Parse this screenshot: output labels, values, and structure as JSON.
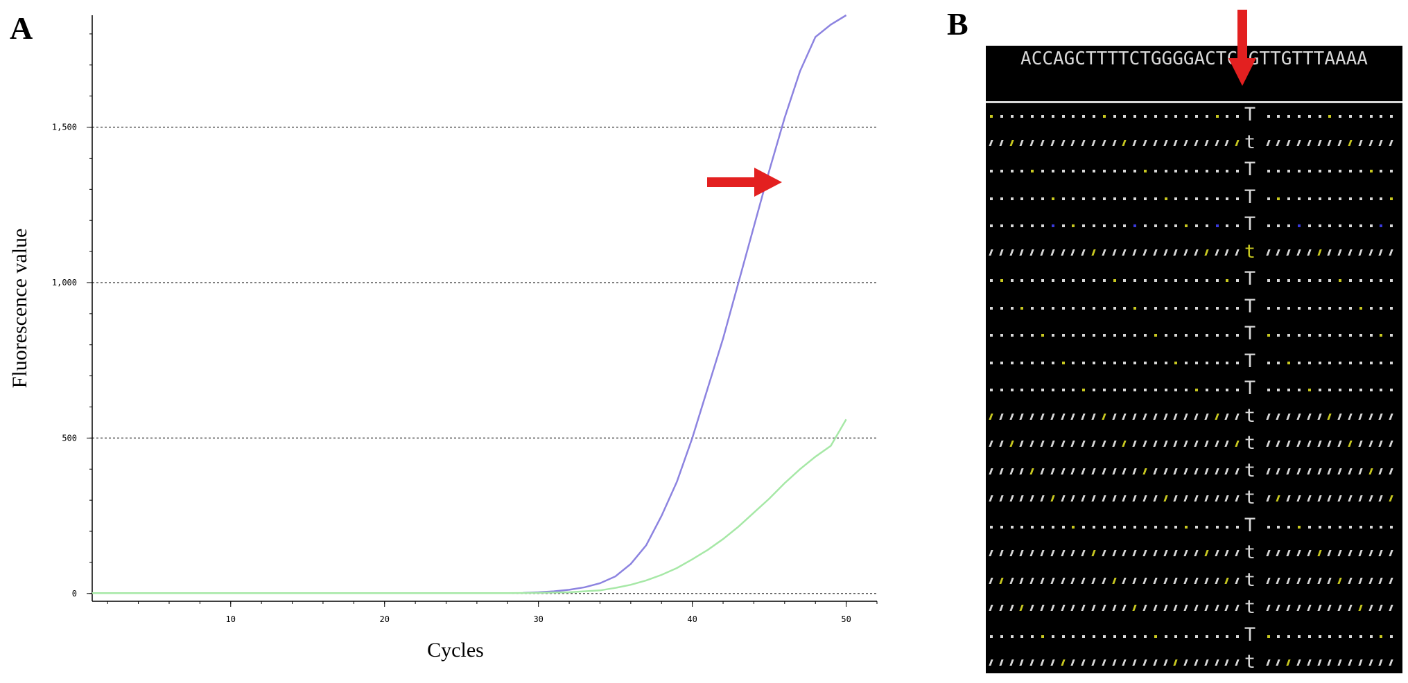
{
  "panel_a": {
    "letter": "A"
  },
  "panel_b": {
    "letter": "B"
  },
  "chart_data": {
    "type": "line",
    "title": "",
    "xlabel": "Cycles",
    "ylabel": "Fluorescence value",
    "xlim": [
      1,
      52
    ],
    "ylim": [
      -25,
      1860
    ],
    "x_ticks": [
      10,
      20,
      30,
      40,
      50
    ],
    "x_tick_labels": [
      "10",
      "20",
      "30",
      "40",
      "50"
    ],
    "y_ticks": [
      0,
      500,
      1000,
      1500
    ],
    "y_tick_labels": [
      "0",
      "500",
      "1,000",
      "1,500"
    ],
    "grid": "horizontal dotted",
    "series": [
      {
        "color": "#8c83e0",
        "x": [
          29,
          30,
          31,
          32,
          33,
          34,
          35,
          36,
          37,
          38,
          39,
          40,
          41,
          42,
          43,
          44,
          45,
          46,
          47,
          48,
          49,
          50
        ],
        "y": [
          2,
          4,
          7,
          12,
          20,
          33,
          55,
          95,
          155,
          250,
          360,
          500,
          660,
          820,
          1000,
          1180,
          1360,
          1530,
          1680,
          1790,
          1830,
          1860
        ]
      },
      {
        "color": "#a6e8a6",
        "x": [
          1,
          10,
          20,
          28,
          30,
          32,
          34,
          35,
          36,
          37,
          38,
          39,
          40,
          41,
          42,
          43,
          44,
          45,
          46,
          47,
          48,
          49,
          50
        ],
        "y": [
          1,
          1,
          1,
          1,
          2,
          4,
          10,
          18,
          28,
          42,
          60,
          82,
          110,
          140,
          175,
          215,
          260,
          305,
          355,
          400,
          440,
          475,
          560
        ]
      }
    ],
    "annotations": [
      {
        "type": "arrow",
        "color": "#e32020",
        "points_to_series": 0
      }
    ]
  },
  "ngs": {
    "reference_sequence": "ACCAGCTTTTCTGGGGACTCCGTTGTTTAAAA",
    "highlight_color": "#e32020",
    "base_color": "#d8d8d8",
    "read_bases": [
      "T",
      "t",
      "T",
      "T",
      "T",
      "t",
      "T",
      "T",
      "T",
      "T",
      "T",
      "t",
      "t",
      "t",
      "t",
      "T",
      "t",
      "t",
      "t",
      "T",
      "t"
    ],
    "read_base_colors": [
      "#d8d8d8",
      "#d8d8d8",
      "#d8d8d8",
      "#d8d8d8",
      "#d8d8d8",
      "#c8c820",
      "#d8d8d8",
      "#d8d8d8",
      "#d8d8d8",
      "#d8d8d8",
      "#d8d8d8",
      "#d8d8d8",
      "#d8d8d8",
      "#d8d8d8",
      "#d8d8d8",
      "#d8d8d8",
      "#d8d8d8",
      "#d8d8d8",
      "#d8d8d8",
      "#d8d8d8",
      "#d8d8d8"
    ]
  }
}
